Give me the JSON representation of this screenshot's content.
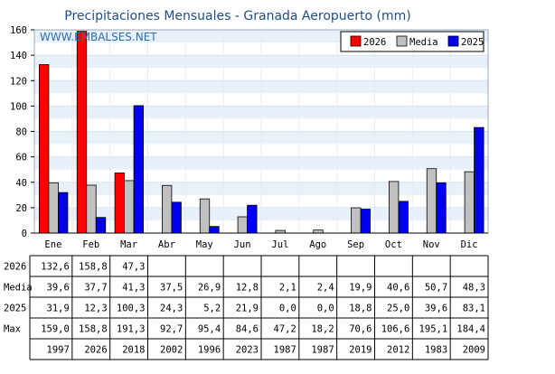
{
  "chart_data": {
    "type": "bar",
    "title": "Precipitaciones Mensuales - Granada Aeropuerto (mm)",
    "watermark": "WWW.EMBALSES.NET",
    "categories": [
      "Ene",
      "Feb",
      "Mar",
      "Abr",
      "May",
      "Jun",
      "Jul",
      "Ago",
      "Sep",
      "Oct",
      "Nov",
      "Dic"
    ],
    "ylim": [
      0,
      160
    ],
    "yticks": [
      "0",
      "20",
      "40",
      "60",
      "80",
      "100",
      "120",
      "140",
      "160"
    ],
    "series": [
      {
        "name": "2026",
        "color": "#ff0000",
        "values": [
          132.6,
          158.8,
          47.3,
          null,
          null,
          null,
          null,
          null,
          null,
          null,
          null,
          null
        ]
      },
      {
        "name": "Media",
        "color": "#c0c0c0",
        "values": [
          39.6,
          37.7,
          41.3,
          37.5,
          26.9,
          12.8,
          2.1,
          2.4,
          19.9,
          40.6,
          50.7,
          48.3
        ]
      },
      {
        "name": "2025",
        "color": "#0000ee",
        "values": [
          31.9,
          12.3,
          100.3,
          24.3,
          5.2,
          21.9,
          0.0,
          0.0,
          18.8,
          25.0,
          39.6,
          83.1
        ]
      }
    ],
    "legend_position": "top-right",
    "grid": "horizontal bands",
    "table": {
      "rows": [
        {
          "label": "2026",
          "cells": [
            "132,6",
            "158,8",
            "47,3",
            "",
            "",
            "",
            "",
            "",
            "",
            "",
            "",
            ""
          ]
        },
        {
          "label": "Media",
          "cells": [
            "39,6",
            "37,7",
            "41,3",
            "37,5",
            "26,9",
            "12,8",
            "2,1",
            "2,4",
            "19,9",
            "40,6",
            "50,7",
            "48,3"
          ]
        },
        {
          "label": "2025",
          "cells": [
            "31,9",
            "12,3",
            "100,3",
            "24,3",
            "5,2",
            "21,9",
            "0,0",
            "0,0",
            "18,8",
            "25,0",
            "39,6",
            "83,1"
          ]
        },
        {
          "label": "Max",
          "cells": [
            "159,0",
            "158,8",
            "191,3",
            "92,7",
            "95,4",
            "84,6",
            "47,2",
            "18,2",
            "70,6",
            "106,6",
            "195,1",
            "184,4"
          ]
        },
        {
          "label": "",
          "cells": [
            "1997",
            "2026",
            "2018",
            "2002",
            "1996",
            "2023",
            "1987",
            "1987",
            "2019",
            "2012",
            "1983",
            "2009"
          ]
        }
      ]
    }
  }
}
